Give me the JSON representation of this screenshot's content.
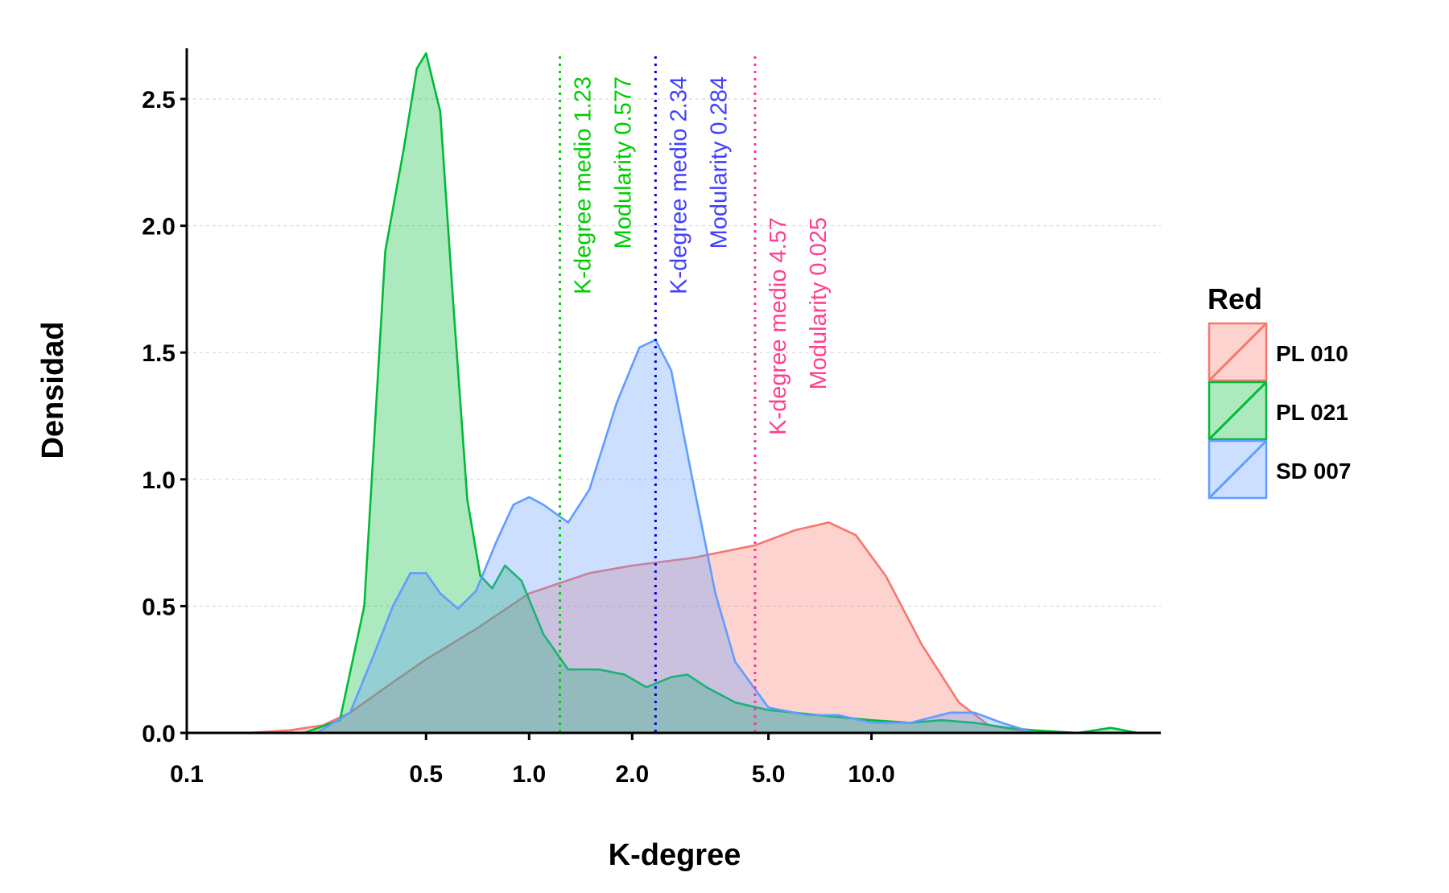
{
  "chart_data": {
    "type": "area",
    "xlabel": "K-degree",
    "ylabel": "Densidad",
    "x_scale": "log10",
    "xlim": [
      0.1,
      70
    ],
    "ylim": [
      0,
      2.7
    ],
    "x_ticks": [
      0.1,
      0.5,
      1.0,
      2.0,
      5.0,
      10.0
    ],
    "x_tick_labels": [
      "0.1",
      "0.5",
      "1.0",
      "2.0",
      "5.0",
      "10.0"
    ],
    "y_ticks": [
      0.0,
      0.5,
      1.0,
      1.5,
      2.0,
      2.5
    ],
    "y_tick_labels": [
      "0.0",
      "0.5",
      "1.0",
      "1.5",
      "2.0",
      "2.5"
    ],
    "grid": "horizontal dashed",
    "legend": {
      "title": "Red",
      "position": "right"
    },
    "series": [
      {
        "name": "PL 010",
        "color": "#F8766D",
        "x": [
          0.15,
          0.2,
          0.25,
          0.3,
          0.4,
          0.5,
          0.7,
          1.0,
          1.5,
          2.0,
          3.0,
          4.57,
          6.0,
          7.5,
          9.0,
          11.0,
          14.0,
          18.0,
          22.0,
          30.0
        ],
        "y": [
          0.0,
          0.01,
          0.03,
          0.08,
          0.2,
          0.29,
          0.41,
          0.55,
          0.63,
          0.66,
          0.69,
          0.74,
          0.8,
          0.83,
          0.78,
          0.62,
          0.35,
          0.12,
          0.03,
          0.0
        ]
      },
      {
        "name": "PL 021",
        "color": "#00BA38",
        "x": [
          0.22,
          0.28,
          0.33,
          0.38,
          0.43,
          0.47,
          0.5,
          0.55,
          0.6,
          0.66,
          0.72,
          0.78,
          0.85,
          0.95,
          1.1,
          1.3,
          1.6,
          1.9,
          2.2,
          2.6,
          2.9,
          3.3,
          4.0,
          5.0,
          7.0,
          10.0,
          13.0,
          16.0,
          20.0,
          25.0,
          30.0,
          40.0,
          50.0,
          60.0
        ],
        "y": [
          0.0,
          0.05,
          0.5,
          1.9,
          2.3,
          2.62,
          2.68,
          2.45,
          1.7,
          0.92,
          0.62,
          0.57,
          0.66,
          0.6,
          0.39,
          0.25,
          0.25,
          0.23,
          0.18,
          0.22,
          0.23,
          0.18,
          0.12,
          0.09,
          0.07,
          0.05,
          0.04,
          0.05,
          0.04,
          0.02,
          0.01,
          0.0,
          0.02,
          0.0
        ]
      },
      {
        "name": "SD 007",
        "color": "#619CFF",
        "x": [
          0.24,
          0.3,
          0.35,
          0.4,
          0.45,
          0.5,
          0.55,
          0.62,
          0.7,
          0.8,
          0.9,
          1.0,
          1.1,
          1.3,
          1.5,
          1.8,
          2.1,
          2.34,
          2.6,
          3.0,
          3.5,
          4.0,
          5.0,
          6.5,
          8.0,
          10.0,
          13.0,
          17.0,
          20.0,
          24.0,
          30.0
        ],
        "y": [
          0.0,
          0.08,
          0.3,
          0.5,
          0.63,
          0.63,
          0.55,
          0.49,
          0.56,
          0.75,
          0.9,
          0.93,
          0.9,
          0.83,
          0.96,
          1.3,
          1.52,
          1.55,
          1.43,
          1.0,
          0.55,
          0.28,
          0.1,
          0.07,
          0.07,
          0.04,
          0.04,
          0.08,
          0.08,
          0.04,
          0.0
        ]
      }
    ],
    "vlines": [
      {
        "x": 1.23,
        "color": "#00CC00"
      },
      {
        "x": 2.34,
        "color": "#0000EE"
      },
      {
        "x": 4.57,
        "color": "#FF3399"
      }
    ],
    "annotations": [
      {
        "text": "K-degree medio 1.23",
        "color": "#00CC00"
      },
      {
        "text": "Modularity 0.577",
        "color": "#00CC00"
      },
      {
        "text": "K-degree medio 2.34",
        "color": "#4040FF"
      },
      {
        "text": "Modularity 0.284",
        "color": "#4040FF"
      },
      {
        "text": "K-degree medio 4.57",
        "color": "#FF4090"
      },
      {
        "text": "Modularity 0.025",
        "color": "#FF4090"
      }
    ]
  }
}
